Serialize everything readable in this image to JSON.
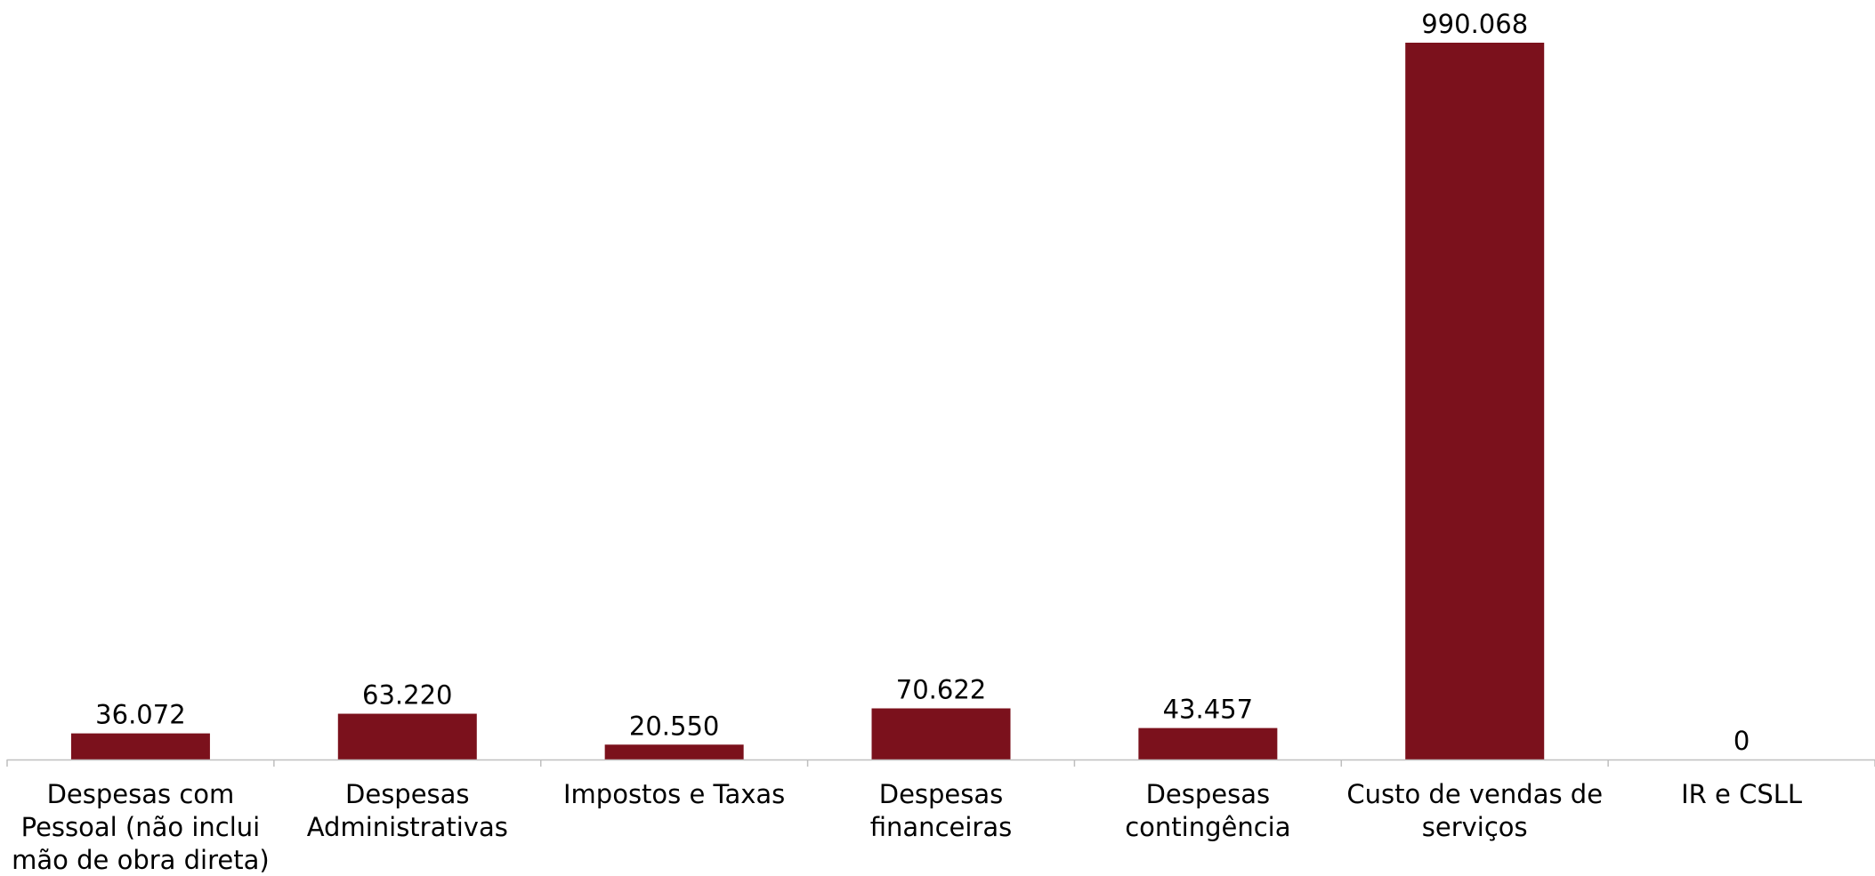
{
  "chart_data": {
    "type": "bar",
    "categories": [
      "Despesas com Pessoal (não inclui mão de obra direta)",
      "Despesas Administrativas",
      "Impostos e Taxas",
      "Despesas financeiras",
      "Despesas contingência",
      "Custo de vendas de serviços",
      "IR e CSLL"
    ],
    "category_lines": [
      [
        "Despesas com",
        "Pessoal (não inclui",
        "mão de obra direta)"
      ],
      [
        "Despesas",
        "Administrativas"
      ],
      [
        "Impostos e Taxas"
      ],
      [
        "Despesas",
        "financeiras"
      ],
      [
        "Despesas",
        "contingência"
      ],
      [
        "Custo de vendas de",
        "serviços"
      ],
      [
        "IR e CSLL"
      ]
    ],
    "values": [
      36072,
      63220,
      20550,
      70622,
      43457,
      990068,
      0
    ],
    "value_labels": [
      "36.072",
      "63.220",
      "20.550",
      "70.622",
      "43.457",
      "990.068",
      "0"
    ],
    "title": "",
    "xlabel": "",
    "ylabel": "",
    "ylim": [
      0,
      990068
    ],
    "grid": false,
    "legend": "none",
    "colors": {
      "bar": "#7b111c",
      "axis": "#bfbfbf",
      "text": "#000000"
    }
  }
}
